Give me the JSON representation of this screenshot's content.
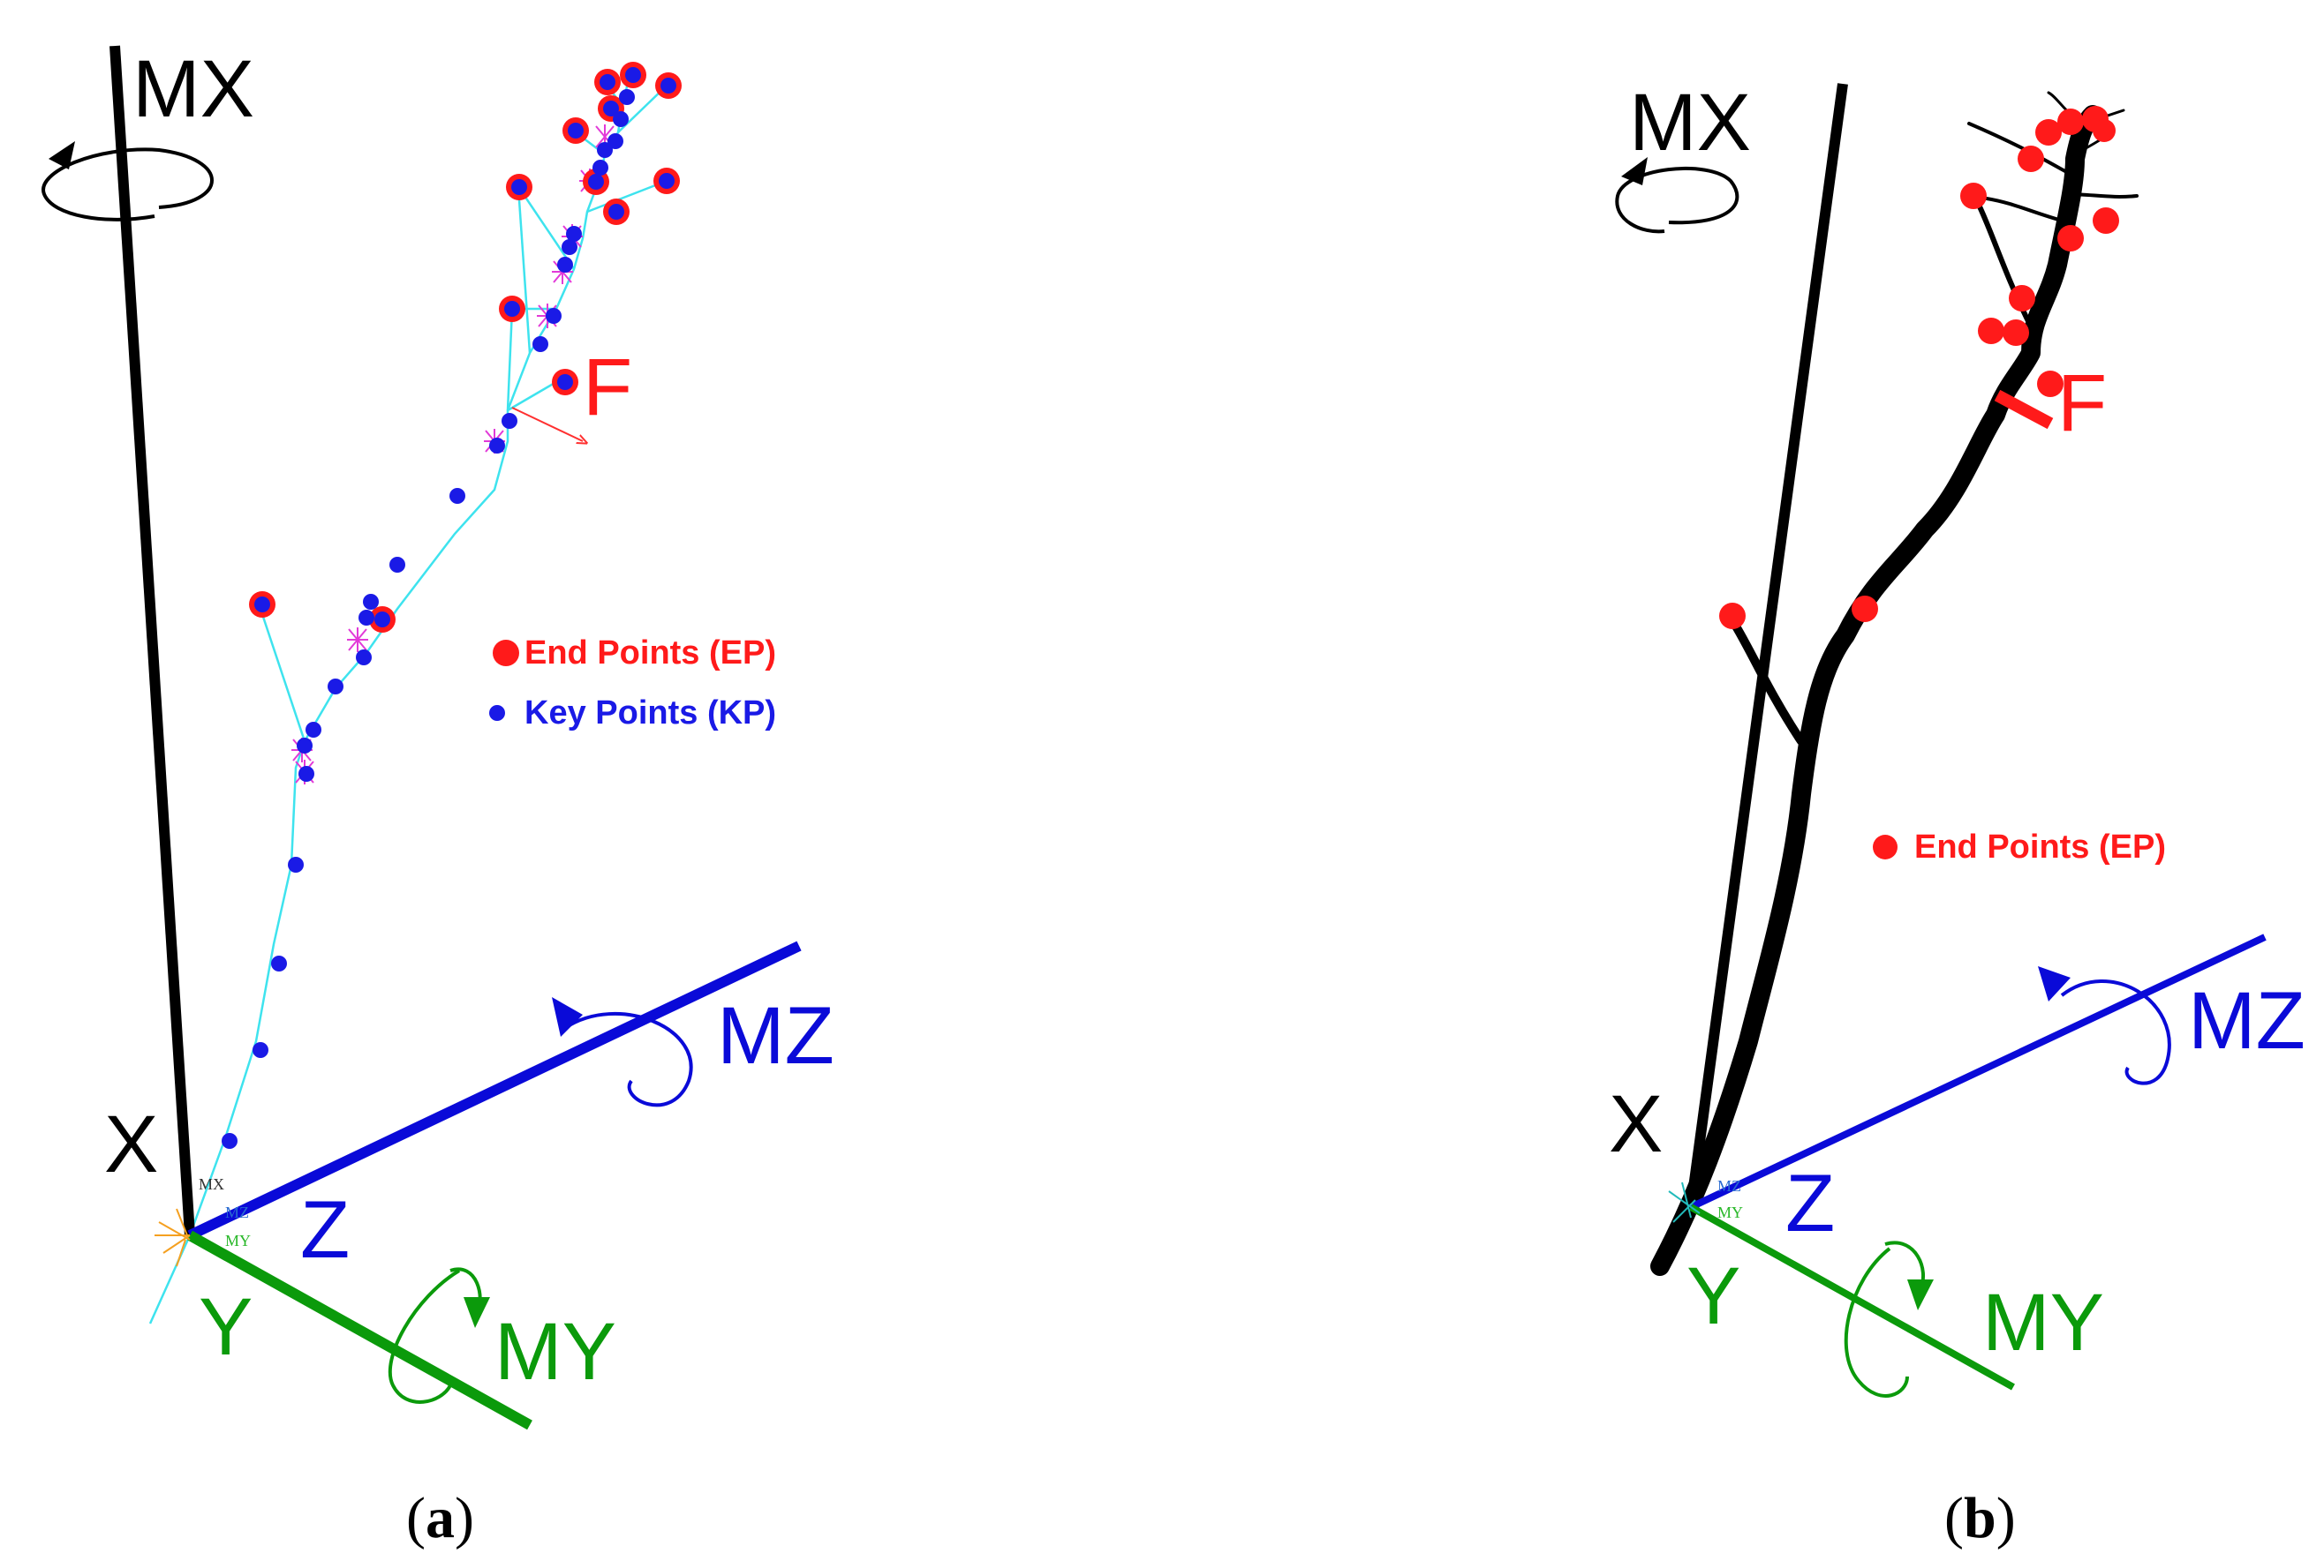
{
  "panels": [
    {
      "id": "a",
      "caption_open": "(",
      "caption_letter": "a",
      "caption_close": ")",
      "axes": {
        "mx": "MX",
        "x": "X",
        "mz": "MZ",
        "z": "Z",
        "y": "Y",
        "my": "MY"
      },
      "force_label": "F",
      "legend": [
        {
          "label": "End Points (EP)",
          "color": "#ff1a1a"
        },
        {
          "label": "Key Points (KP)",
          "color": "#1a1ae6"
        }
      ],
      "origin_small_labels": [
        "MX",
        "MZ",
        "MY"
      ]
    },
    {
      "id": "b",
      "caption_open": "(",
      "caption_letter": "b",
      "caption_close": ")",
      "axes": {
        "mx": "MX",
        "x": "X",
        "mz": "MZ",
        "z": "Z",
        "y": "Y",
        "my": "MY"
      },
      "force_label": "F",
      "legend": [
        {
          "label": "End Points (EP)",
          "color": "#ff1a1a"
        }
      ],
      "origin_small_labels": [
        "MZ",
        "MY"
      ]
    }
  ],
  "colors": {
    "x_axis": "#000000",
    "z_axis": "#0a0ad8",
    "y_axis": "#0b9a0b",
    "end_point": "#ff1a1a",
    "key_point": "#1a1ae6",
    "skeleton": "#3ee3ee",
    "mesh_marker": "#e23ad8",
    "branch": "#000000"
  }
}
